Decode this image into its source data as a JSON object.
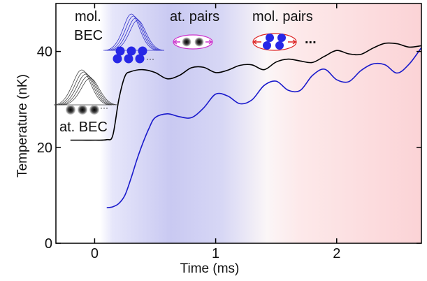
{
  "chart_data": {
    "type": "line",
    "xlabel": "Time (ms)",
    "ylabel": "Temperature (nK)",
    "xlim": [
      -0.32,
      2.7
    ],
    "ylim": [
      0,
      50
    ],
    "xticks": [
      0,
      1,
      2
    ],
    "yticks": [
      0,
      20,
      40
    ],
    "grid": false,
    "background_regions": [
      {
        "x0": 0.1,
        "x1": 0.95,
        "color": "#b9b9ee"
      },
      {
        "x0": 0.95,
        "x1": 2.7,
        "color": "#f8cfd2"
      }
    ],
    "series": [
      {
        "color": "#000000",
        "x": [
          -0.2,
          -0.1,
          0.0,
          0.1,
          0.15,
          0.2,
          0.25,
          0.3,
          0.4,
          0.5,
          0.6,
          0.7,
          0.8,
          0.9,
          1.0,
          1.1,
          1.2,
          1.3,
          1.4,
          1.5,
          1.6,
          1.7,
          1.8,
          1.9,
          2.0,
          2.1,
          2.2,
          2.3,
          2.4,
          2.5,
          2.6,
          2.7
        ],
        "y": [
          21.5,
          21.5,
          21.5,
          21.6,
          22.5,
          30.0,
          34.8,
          35.8,
          36.2,
          35.6,
          34.3,
          35.0,
          36.6,
          36.7,
          35.6,
          36.1,
          37.1,
          37.2,
          36.2,
          37.8,
          38.4,
          38.0,
          37.7,
          39.0,
          40.2,
          39.5,
          39.4,
          40.7,
          41.7,
          41.6,
          40.9,
          41.2
        ]
      },
      {
        "color": "#1a1acc",
        "x": [
          0.1,
          0.15,
          0.2,
          0.25,
          0.3,
          0.35,
          0.4,
          0.45,
          0.5,
          0.6,
          0.7,
          0.8,
          0.9,
          1.0,
          1.1,
          1.2,
          1.3,
          1.4,
          1.5,
          1.6,
          1.7,
          1.8,
          1.9,
          2.0,
          2.1,
          2.2,
          2.3,
          2.4,
          2.5,
          2.6,
          2.7
        ],
        "y": [
          7.4,
          7.6,
          8.3,
          10.0,
          13.5,
          17.5,
          21.0,
          24.0,
          26.2,
          27.0,
          26.4,
          26.2,
          28.2,
          31.1,
          30.7,
          29.1,
          29.9,
          32.9,
          33.8,
          31.9,
          31.9,
          35.0,
          36.3,
          34.1,
          33.7,
          36.0,
          37.4,
          37.2,
          35.5,
          37.4,
          40.8
        ]
      }
    ],
    "annotations": [
      {
        "text": "at. BEC"
      },
      {
        "text": "mol."
      },
      {
        "text": "BEC"
      },
      {
        "text": "at. pairs"
      },
      {
        "text": "mol. pairs"
      },
      {
        "text": "..."
      }
    ]
  }
}
